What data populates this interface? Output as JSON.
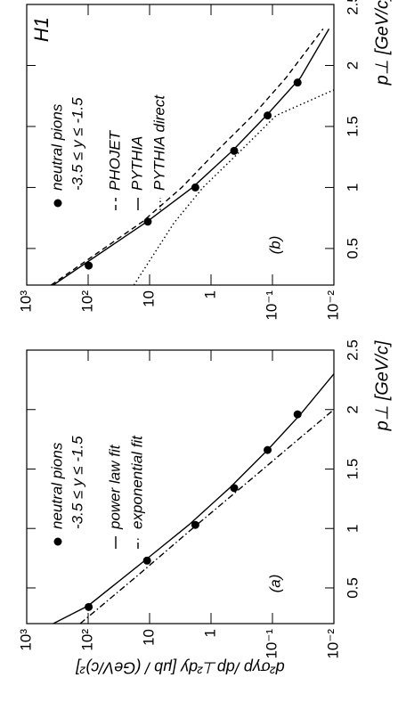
{
  "chart_data": [
    {
      "type": "line",
      "panel_label": "(a)",
      "xlabel": "p⊥ [GeV/c]",
      "ylabel": "d²σγp /dp⊥²dy [μb / (GeV/c)²]",
      "selection": "-3.5 ≤ y ≤ -1.5",
      "log_y": true,
      "xlim": [
        0.2,
        2.5
      ],
      "xticks": [
        0.5,
        1,
        1.5,
        2,
        2.5
      ],
      "ylim": [
        0.01,
        1000
      ],
      "yticks": [
        {
          "value": 1000,
          "label": "10³"
        },
        {
          "value": 100,
          "label": "10²"
        },
        10,
        1,
        {
          "value": 0.1,
          "label": "10⁻¹"
        },
        {
          "value": 0.01,
          "label": "10⁻²"
        }
      ],
      "series": [
        {
          "name": "neutral pions",
          "style": "marker",
          "color": "#000000",
          "x": [
            0.34,
            0.73,
            1.03,
            1.34,
            1.66,
            1.96
          ],
          "values": [
            98,
            11,
            1.8,
            0.42,
            0.12,
            0.039
          ]
        },
        {
          "name": "power law fit",
          "style": "solid",
          "color": "#000000",
          "x": [
            0.2,
            0.35,
            0.73,
            1.03,
            1.34,
            1.66,
            1.96,
            2.3
          ],
          "values": [
            370,
            100,
            12,
            2.3,
            0.5,
            0.12,
            0.035,
            0.01
          ]
        },
        {
          "name": "exponential fit",
          "style": "dashdot",
          "color": "#000000",
          "x": [
            0.2,
            0.6,
            1.0,
            1.4,
            1.8,
            2.0
          ],
          "values": [
            135,
            16,
            2.0,
            0.24,
            0.029,
            0.01
          ]
        }
      ]
    },
    {
      "type": "line",
      "panel_label": "(b)",
      "experiment": "H1",
      "xlabel": "p⊥ [GeV/c]",
      "selection": "-3.5 ≤ y ≤ -1.5",
      "log_y": true,
      "xlim": [
        0.2,
        2.5
      ],
      "xticks": [
        0.5,
        1,
        1.5,
        2,
        2.5
      ],
      "ylim": [
        0.01,
        1000
      ],
      "yticks": [
        {
          "value": 1000,
          "label": "10³"
        },
        {
          "value": 100,
          "label": "10²"
        },
        10,
        1,
        {
          "value": 0.1,
          "label": "10⁻¹"
        },
        {
          "value": 0.01,
          "label": "10⁻²"
        }
      ],
      "series": [
        {
          "name": "neutral pions",
          "style": "marker",
          "color": "#000000",
          "x": [
            0.36,
            0.72,
            1.0,
            1.3,
            1.59,
            1.86
          ],
          "values": [
            98,
            10.7,
            1.8,
            0.42,
            0.12,
            0.039
          ]
        },
        {
          "name": "PHOJET",
          "style": "dashed",
          "color": "#000000",
          "x": [
            0.2,
            0.72,
            1.0,
            1.3,
            1.6,
            1.9,
            2.3
          ],
          "values": [
            400,
            13,
            3,
            0.8,
            0.2,
            0.06,
            0.015
          ]
        },
        {
          "name": "PYTHIA",
          "style": "solid",
          "color": "#000000",
          "x": [
            0.2,
            0.72,
            1.0,
            1.3,
            1.6,
            1.9,
            2.3
          ],
          "values": [
            370,
            11,
            2.0,
            0.45,
            0.12,
            0.035,
            0.012
          ]
        },
        {
          "name": "PYTHIA direct",
          "style": "dotted",
          "color": "#000000",
          "x": [
            0.2,
            0.71,
            1.0,
            1.3,
            1.59,
            1.8
          ],
          "values": [
            18,
            4,
            1.35,
            0.33,
            0.087,
            0.01
          ]
        }
      ]
    }
  ]
}
